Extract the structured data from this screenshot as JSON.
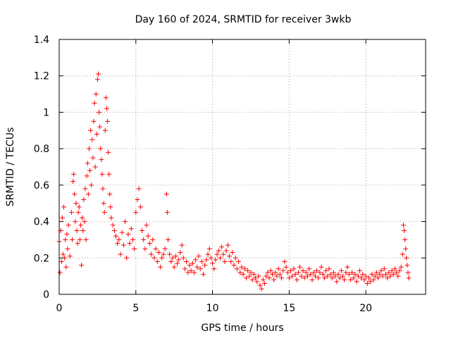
{
  "chart_data": {
    "type": "scatter",
    "title": "Day 160 of 2024, SRMTID for receiver 3wkb",
    "xlabel": "GPS time / hours",
    "ylabel": "SRMTID / TECUs",
    "xlim": [
      0,
      23.9
    ],
    "ylim": [
      0,
      1.4
    ],
    "grid": true,
    "marker": "plus",
    "color": "#ff0000",
    "x_ticks": [
      "0",
      "5",
      "10",
      "15",
      "20"
    ],
    "x_tick_values": [
      0,
      5,
      10,
      15,
      20
    ],
    "y_ticks": [
      "0",
      "0.2",
      "0.4",
      "0.6",
      "0.8",
      "1",
      "1.2",
      "1.4"
    ],
    "y_tick_values": [
      0,
      0.2,
      0.4,
      0.6,
      0.8,
      1.0,
      1.2,
      1.4
    ],
    "series": [
      {
        "name": "SRMTID",
        "points": [
          [
            0.0,
            0.29
          ],
          [
            0.05,
            0.12
          ],
          [
            0.1,
            0.35
          ],
          [
            0.15,
            0.18
          ],
          [
            0.2,
            0.42
          ],
          [
            0.25,
            0.22
          ],
          [
            0.3,
            0.48
          ],
          [
            0.35,
            0.2
          ],
          [
            0.4,
            0.3
          ],
          [
            0.45,
            0.15
          ],
          [
            0.5,
            0.33
          ],
          [
            0.55,
            0.25
          ],
          [
            0.6,
            0.38
          ],
          [
            0.7,
            0.21
          ],
          [
            0.8,
            0.45
          ],
          [
            0.85,
            0.3
          ],
          [
            0.9,
            0.62
          ],
          [
            0.95,
            0.66
          ],
          [
            1.0,
            0.55
          ],
          [
            1.05,
            0.4
          ],
          [
            1.1,
            0.5
          ],
          [
            1.15,
            0.35
          ],
          [
            1.2,
            0.28
          ],
          [
            1.25,
            0.45
          ],
          [
            1.3,
            0.48
          ],
          [
            1.35,
            0.3
          ],
          [
            1.4,
            0.38
          ],
          [
            1.45,
            0.16
          ],
          [
            1.5,
            0.42
          ],
          [
            1.55,
            0.35
          ],
          [
            1.6,
            0.52
          ],
          [
            1.65,
            0.4
          ],
          [
            1.7,
            0.58
          ],
          [
            1.75,
            0.3
          ],
          [
            1.8,
            0.65
          ],
          [
            1.85,
            0.72
          ],
          [
            1.9,
            0.55
          ],
          [
            1.95,
            0.8
          ],
          [
            2.0,
            0.68
          ],
          [
            2.05,
            0.9
          ],
          [
            2.1,
            0.6
          ],
          [
            2.15,
            0.85
          ],
          [
            2.2,
            0.75
          ],
          [
            2.25,
            0.95
          ],
          [
            2.3,
            1.05
          ],
          [
            2.35,
            0.7
          ],
          [
            2.4,
            1.1
          ],
          [
            2.45,
            0.88
          ],
          [
            2.5,
            1.18
          ],
          [
            2.55,
            1.21
          ],
          [
            2.6,
            1.0
          ],
          [
            2.65,
            0.92
          ],
          [
            2.7,
            0.8
          ],
          [
            2.75,
            0.74
          ],
          [
            2.8,
            0.66
          ],
          [
            2.85,
            0.58
          ],
          [
            2.9,
            0.5
          ],
          [
            2.95,
            0.45
          ],
          [
            3.0,
            0.9
          ],
          [
            3.05,
            1.08
          ],
          [
            3.1,
            1.02
          ],
          [
            3.15,
            0.95
          ],
          [
            3.2,
            0.78
          ],
          [
            3.25,
            0.66
          ],
          [
            3.3,
            0.55
          ],
          [
            3.35,
            0.48
          ],
          [
            3.4,
            0.42
          ],
          [
            3.5,
            0.38
          ],
          [
            3.6,
            0.35
          ],
          [
            3.7,
            0.32
          ],
          [
            3.8,
            0.28
          ],
          [
            3.9,
            0.3
          ],
          [
            4.0,
            0.22
          ],
          [
            4.1,
            0.34
          ],
          [
            4.2,
            0.27
          ],
          [
            4.3,
            0.4
          ],
          [
            4.4,
            0.2
          ],
          [
            4.5,
            0.33
          ],
          [
            4.6,
            0.28
          ],
          [
            4.7,
            0.36
          ],
          [
            4.8,
            0.3
          ],
          [
            4.9,
            0.25
          ],
          [
            5.0,
            0.45
          ],
          [
            5.1,
            0.52
          ],
          [
            5.2,
            0.58
          ],
          [
            5.3,
            0.48
          ],
          [
            5.4,
            0.35
          ],
          [
            5.5,
            0.3
          ],
          [
            5.6,
            0.25
          ],
          [
            5.7,
            0.38
          ],
          [
            5.8,
            0.32
          ],
          [
            5.9,
            0.28
          ],
          [
            6.0,
            0.22
          ],
          [
            6.1,
            0.3
          ],
          [
            6.2,
            0.2
          ],
          [
            6.3,
            0.25
          ],
          [
            6.4,
            0.18
          ],
          [
            6.5,
            0.23
          ],
          [
            6.6,
            0.15
          ],
          [
            6.7,
            0.2
          ],
          [
            6.8,
            0.22
          ],
          [
            6.9,
            0.25
          ],
          [
            7.0,
            0.55
          ],
          [
            7.05,
            0.45
          ],
          [
            7.1,
            0.3
          ],
          [
            7.2,
            0.22
          ],
          [
            7.3,
            0.18
          ],
          [
            7.4,
            0.2
          ],
          [
            7.5,
            0.15
          ],
          [
            7.6,
            0.21
          ],
          [
            7.7,
            0.17
          ],
          [
            7.8,
            0.19
          ],
          [
            7.9,
            0.23
          ],
          [
            8.0,
            0.27
          ],
          [
            8.1,
            0.2
          ],
          [
            8.2,
            0.14
          ],
          [
            8.3,
            0.18
          ],
          [
            8.4,
            0.12
          ],
          [
            8.5,
            0.16
          ],
          [
            8.6,
            0.13
          ],
          [
            8.7,
            0.17
          ],
          [
            8.8,
            0.12
          ],
          [
            8.9,
            0.19
          ],
          [
            9.0,
            0.15
          ],
          [
            9.1,
            0.21
          ],
          [
            9.2,
            0.14
          ],
          [
            9.3,
            0.18
          ],
          [
            9.4,
            0.11
          ],
          [
            9.5,
            0.16
          ],
          [
            9.6,
            0.19
          ],
          [
            9.7,
            0.22
          ],
          [
            9.8,
            0.25
          ],
          [
            9.9,
            0.2
          ],
          [
            10.0,
            0.17
          ],
          [
            10.1,
            0.14
          ],
          [
            10.2,
            0.19
          ],
          [
            10.3,
            0.22
          ],
          [
            10.4,
            0.24
          ],
          [
            10.5,
            0.2
          ],
          [
            10.6,
            0.26
          ],
          [
            10.7,
            0.22
          ],
          [
            10.8,
            0.18
          ],
          [
            10.9,
            0.24
          ],
          [
            11.0,
            0.27
          ],
          [
            11.1,
            0.21
          ],
          [
            11.2,
            0.18
          ],
          [
            11.3,
            0.23
          ],
          [
            11.4,
            0.16
          ],
          [
            11.5,
            0.2
          ],
          [
            11.6,
            0.14
          ],
          [
            11.7,
            0.18
          ],
          [
            11.8,
            0.12
          ],
          [
            11.9,
            0.15
          ],
          [
            12.0,
            0.11
          ],
          [
            12.1,
            0.14
          ],
          [
            12.2,
            0.09
          ],
          [
            12.3,
            0.13
          ],
          [
            12.4,
            0.1
          ],
          [
            12.5,
            0.12
          ],
          [
            12.6,
            0.08
          ],
          [
            12.7,
            0.11
          ],
          [
            12.8,
            0.09
          ],
          [
            12.9,
            0.07
          ],
          [
            13.0,
            0.1
          ],
          [
            13.1,
            0.05
          ],
          [
            13.2,
            0.03
          ],
          [
            13.3,
            0.08
          ],
          [
            13.4,
            0.06
          ],
          [
            13.5,
            0.1
          ],
          [
            13.6,
            0.12
          ],
          [
            13.7,
            0.09
          ],
          [
            13.8,
            0.13
          ],
          [
            13.9,
            0.11
          ],
          [
            14.0,
            0.08
          ],
          [
            14.1,
            0.12
          ],
          [
            14.2,
            0.1
          ],
          [
            14.3,
            0.14
          ],
          [
            14.4,
            0.11
          ],
          [
            14.5,
            0.09
          ],
          [
            14.6,
            0.13
          ],
          [
            14.7,
            0.18
          ],
          [
            14.8,
            0.15
          ],
          [
            14.9,
            0.12
          ],
          [
            15.0,
            0.09
          ],
          [
            15.1,
            0.13
          ],
          [
            15.2,
            0.1
          ],
          [
            15.3,
            0.14
          ],
          [
            15.4,
            0.11
          ],
          [
            15.5,
            0.08
          ],
          [
            15.6,
            0.12
          ],
          [
            15.7,
            0.15
          ],
          [
            15.8,
            0.1
          ],
          [
            15.9,
            0.13
          ],
          [
            16.0,
            0.09
          ],
          [
            16.1,
            0.12
          ],
          [
            16.2,
            0.1
          ],
          [
            16.3,
            0.14
          ],
          [
            16.4,
            0.11
          ],
          [
            16.5,
            0.08
          ],
          [
            16.6,
            0.12
          ],
          [
            16.7,
            0.1
          ],
          [
            16.8,
            0.13
          ],
          [
            16.9,
            0.09
          ],
          [
            17.0,
            0.12
          ],
          [
            17.1,
            0.15
          ],
          [
            17.2,
            0.11
          ],
          [
            17.3,
            0.09
          ],
          [
            17.4,
            0.13
          ],
          [
            17.5,
            0.1
          ],
          [
            17.6,
            0.14
          ],
          [
            17.7,
            0.11
          ],
          [
            17.8,
            0.09
          ],
          [
            17.9,
            0.12
          ],
          [
            18.0,
            0.1
          ],
          [
            18.1,
            0.07
          ],
          [
            18.2,
            0.11
          ],
          [
            18.3,
            0.09
          ],
          [
            18.4,
            0.13
          ],
          [
            18.5,
            0.1
          ],
          [
            18.6,
            0.08
          ],
          [
            18.7,
            0.12
          ],
          [
            18.8,
            0.15
          ],
          [
            18.9,
            0.11
          ],
          [
            19.0,
            0.08
          ],
          [
            19.1,
            0.12
          ],
          [
            19.2,
            0.09
          ],
          [
            19.3,
            0.11
          ],
          [
            19.4,
            0.07
          ],
          [
            19.5,
            0.1
          ],
          [
            19.6,
            0.13
          ],
          [
            19.7,
            0.09
          ],
          [
            19.8,
            0.11
          ],
          [
            19.9,
            0.08
          ],
          [
            20.0,
            0.1
          ],
          [
            20.1,
            0.06
          ],
          [
            20.2,
            0.09
          ],
          [
            20.3,
            0.07
          ],
          [
            20.4,
            0.11
          ],
          [
            20.5,
            0.08
          ],
          [
            20.6,
            0.1
          ],
          [
            20.7,
            0.12
          ],
          [
            20.8,
            0.09
          ],
          [
            20.9,
            0.11
          ],
          [
            21.0,
            0.13
          ],
          [
            21.1,
            0.1
          ],
          [
            21.2,
            0.14
          ],
          [
            21.3,
            0.11
          ],
          [
            21.4,
            0.09
          ],
          [
            21.5,
            0.12
          ],
          [
            21.6,
            0.1
          ],
          [
            21.7,
            0.13
          ],
          [
            21.8,
            0.11
          ],
          [
            21.9,
            0.14
          ],
          [
            22.0,
            0.12
          ],
          [
            22.1,
            0.1
          ],
          [
            22.2,
            0.13
          ],
          [
            22.3,
            0.15
          ],
          [
            22.4,
            0.22
          ],
          [
            22.45,
            0.38
          ],
          [
            22.5,
            0.35
          ],
          [
            22.55,
            0.3
          ],
          [
            22.6,
            0.25
          ],
          [
            22.65,
            0.2
          ],
          [
            22.7,
            0.16
          ],
          [
            22.75,
            0.12
          ],
          [
            22.8,
            0.09
          ]
        ]
      }
    ]
  }
}
